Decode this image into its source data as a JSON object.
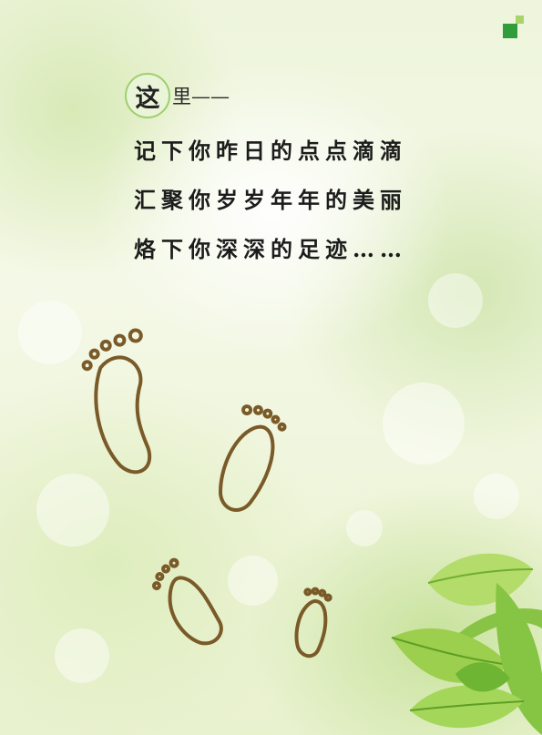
{
  "title": {
    "badge_char": "这",
    "rest": "里——"
  },
  "poem": {
    "line1": "记下你昨日的点点滴滴",
    "line2": "汇聚你岁岁年年的美丽",
    "line3": "烙下你深深的足迹……"
  },
  "colors": {
    "accent_green": "#2e9d3a",
    "light_green": "#a8d46a",
    "footprint_brown": "#7a5a28"
  }
}
